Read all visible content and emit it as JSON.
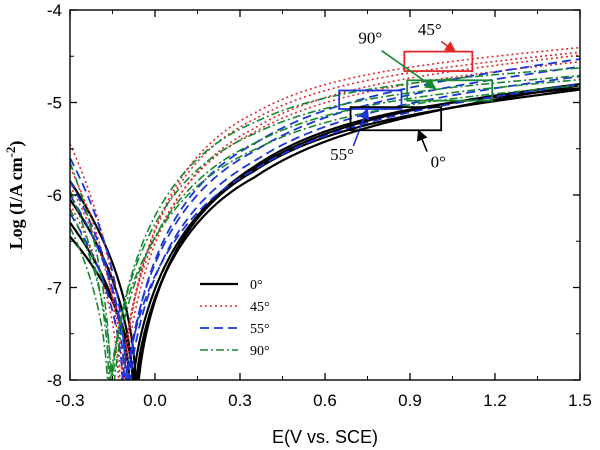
{
  "chart_data": {
    "type": "line",
    "title": "",
    "xlabel": "E(V vs. SCE)",
    "ylabel_main": "Log (I/A cm",
    "ylabel_sup": "-2",
    "ylabel_close": ")",
    "xlim": [
      -0.3,
      1.5
    ],
    "ylim": [
      -8,
      -4
    ],
    "x_ticks": [
      -0.3,
      0.0,
      0.3,
      0.6,
      0.9,
      1.2,
      1.5
    ],
    "x_tick_labels": [
      "-0.3",
      "0.0",
      "0.3",
      "0.6",
      "0.9",
      "1.2",
      "1.5"
    ],
    "y_ticks": [
      -8,
      -7,
      -6,
      -5,
      -4
    ],
    "y_tick_labels": [
      "-8",
      "-7",
      "-6",
      "-5",
      "-4"
    ],
    "grid": false,
    "legend_position": "lower-center",
    "series": [
      {
        "name": "0°",
        "color": "#000000",
        "style": "solid",
        "width": 2.2,
        "curves": [
          {
            "ecorr": -0.065,
            "start_y": -5.85,
            "plateau": -5.25,
            "end_y": -4.85,
            "b": 3.2
          },
          {
            "ecorr": -0.075,
            "start_y": -6.05,
            "plateau": -5.3,
            "end_y": -4.8,
            "b": 3.0
          },
          {
            "ecorr": -0.085,
            "start_y": -6.3,
            "plateau": -5.15,
            "end_y": -4.78,
            "b": 2.8
          },
          {
            "ecorr": -0.07,
            "start_y": -6.45,
            "plateau": -5.05,
            "end_y": -4.82,
            "b": 2.7
          }
        ]
      },
      {
        "name": "45°",
        "color": "#e0282a",
        "style": "dotted",
        "width": 1.6,
        "curves": [
          {
            "ecorr": -0.115,
            "start_y": -5.45,
            "plateau": -4.72,
            "end_y": -4.4,
            "b": 3.6
          },
          {
            "ecorr": -0.12,
            "start_y": -5.7,
            "plateau": -4.78,
            "end_y": -4.45,
            "b": 3.5
          },
          {
            "ecorr": -0.11,
            "start_y": -5.9,
            "plateau": -4.85,
            "end_y": -4.48,
            "b": 3.4
          },
          {
            "ecorr": -0.125,
            "start_y": -6.1,
            "plateau": -4.9,
            "end_y": -4.55,
            "b": 3.3
          }
        ]
      },
      {
        "name": "55°",
        "color": "#1a35d8",
        "style": "dashed",
        "width": 1.8,
        "curves": [
          {
            "ecorr": -0.1,
            "start_y": -5.6,
            "plateau": -5.0,
            "end_y": -4.52,
            "b": 3.3
          },
          {
            "ecorr": -0.105,
            "start_y": -5.85,
            "plateau": -5.05,
            "end_y": -4.6,
            "b": 3.1
          },
          {
            "ecorr": -0.095,
            "start_y": -6.0,
            "plateau": -5.1,
            "end_y": -4.7,
            "b": 2.9
          },
          {
            "ecorr": -0.11,
            "start_y": -6.2,
            "plateau": -5.18,
            "end_y": -4.78,
            "b": 2.7
          }
        ]
      },
      {
        "name": "90°",
        "color": "#17882f",
        "style": "dashdot",
        "width": 1.6,
        "curves": [
          {
            "ecorr": -0.155,
            "start_y": -5.65,
            "plateau": -4.85,
            "end_y": -4.62,
            "b": 3.4
          },
          {
            "ecorr": -0.16,
            "start_y": -5.95,
            "plateau": -4.95,
            "end_y": -4.7,
            "b": 3.2
          },
          {
            "ecorr": -0.15,
            "start_y": -6.15,
            "plateau": -5.0,
            "end_y": -4.74,
            "b": 3.0
          },
          {
            "ecorr": -0.165,
            "start_y": -6.35,
            "plateau": -5.05,
            "end_y": -4.8,
            "b": 2.8
          }
        ]
      }
    ],
    "annotations": [
      {
        "label": "45°",
        "color": "#e0282a",
        "box_x": [
          0.88,
          1.12
        ],
        "box_y": [
          -4.66,
          -4.45
        ],
        "text_x": 0.97,
        "text_y": -4.27,
        "arrow_from": [
          1.01,
          -4.34
        ],
        "arrow_to": [
          1.06,
          -4.45
        ]
      },
      {
        "label": "90°",
        "color": "#17882f",
        "box_x": [
          0.89,
          1.19
        ],
        "box_y": [
          -4.98,
          -4.76
        ],
        "text_x": 0.76,
        "text_y": -4.36,
        "arrow_from": [
          0.8,
          -4.44
        ],
        "arrow_to": [
          0.99,
          -4.85
        ]
      },
      {
        "label": "55°",
        "color": "#1a35d8",
        "box_x": [
          0.65,
          0.87
        ],
        "box_y": [
          -5.07,
          -4.87
        ],
        "text_x": 0.66,
        "text_y": -5.62,
        "arrow_from": [
          0.7,
          -5.47
        ],
        "arrow_to": [
          0.75,
          -5.07
        ]
      },
      {
        "label": "0°",
        "color": "#000000",
        "box_x": [
          0.69,
          1.01
        ],
        "box_y": [
          -5.3,
          -5.05
        ],
        "text_x": 1.0,
        "text_y": -5.7,
        "arrow_from": [
          0.96,
          -5.53
        ],
        "arrow_to": [
          0.93,
          -5.3
        ]
      }
    ]
  }
}
